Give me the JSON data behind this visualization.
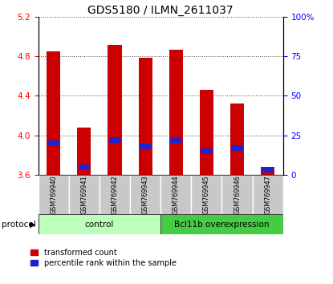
{
  "title": "GDS5180 / ILMN_2611037",
  "samples": [
    "GSM769940",
    "GSM769941",
    "GSM769942",
    "GSM769943",
    "GSM769944",
    "GSM769945",
    "GSM769946",
    "GSM769947"
  ],
  "transformed_count": [
    4.85,
    4.08,
    4.92,
    4.79,
    4.87,
    4.46,
    4.32,
    3.68
  ],
  "percentile_rank": [
    20,
    5,
    22,
    18,
    22,
    15,
    17,
    3
  ],
  "ylim_left": [
    3.6,
    5.2
  ],
  "ylim_right": [
    0,
    100
  ],
  "yticks_left": [
    3.6,
    4.0,
    4.4,
    4.8,
    5.2
  ],
  "yticks_right": [
    0,
    25,
    50,
    75,
    100
  ],
  "bar_color": "#cc0000",
  "blue_color": "#2222cc",
  "bar_bottom": 3.6,
  "control_color": "#bbffbb",
  "overexp_color": "#44cc44",
  "control_label": "control",
  "overexp_label": "Bcl11b overexpression",
  "protocol_label": "protocol",
  "legend1": "transformed count",
  "legend2": "percentile rank within the sample",
  "title_fontsize": 10,
  "tick_fontsize": 7.5,
  "bar_width": 0.45
}
